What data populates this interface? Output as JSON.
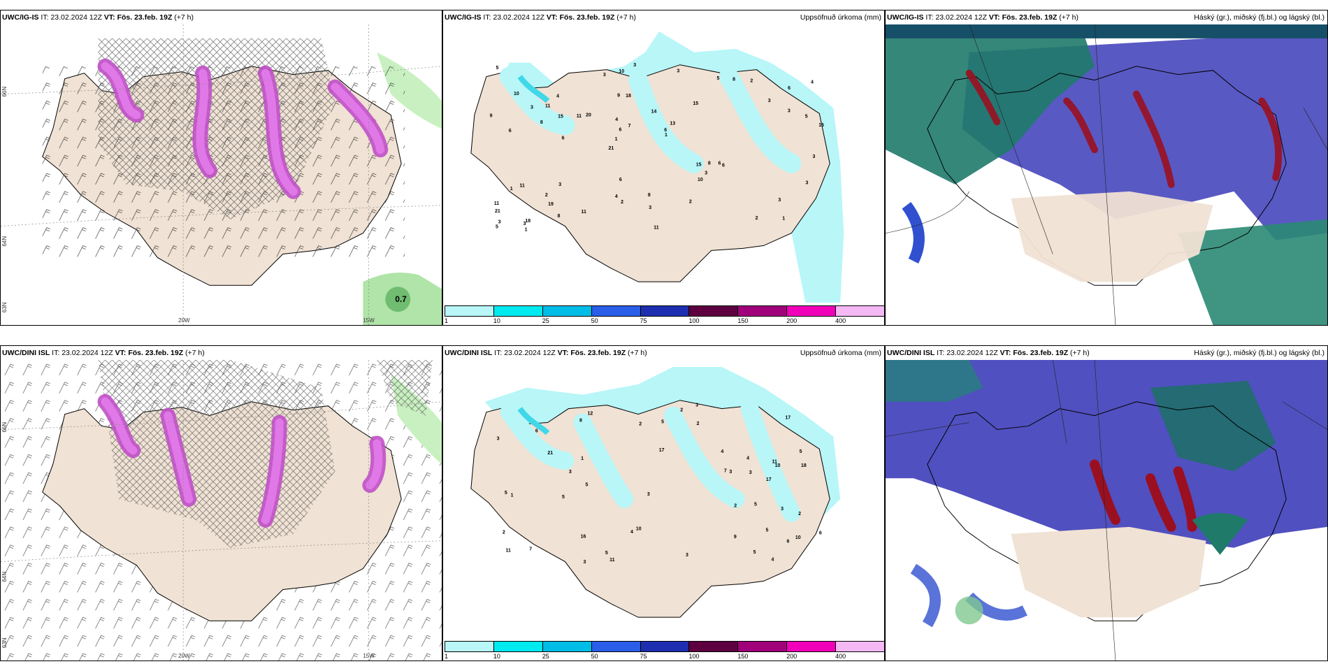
{
  "panels": {
    "p1": {
      "model": "UWC/IG-IS",
      "it_label": "IT:",
      "it": "23.02.2024 12Z",
      "vt_label": "VT:",
      "vt": "Fös. 23.feb. 19Z",
      "lead": "(+7 h)",
      "right": ""
    },
    "p2": {
      "model": "UWC/IG-IS",
      "it_label": "IT:",
      "it": "23.02.2024 12Z",
      "vt_label": "VT:",
      "vt": "Fös. 23.feb. 19Z",
      "lead": "(+7 h)",
      "right": "Uppsöfnuð úrkoma (mm)"
    },
    "p3": {
      "model": "UWC/IG-IS",
      "it_label": "IT:",
      "it": "23.02.2024 12Z",
      "vt_label": "VT:",
      "vt": "Fös. 23.feb. 19Z",
      "lead": "(+7 h)",
      "right": "Háský (gr.), miðský (fj.bl.) og lágský (bl.)"
    },
    "p4": {
      "model": "UWC/DINI ISL",
      "it_label": "IT:",
      "it": "23.02.2024 12Z",
      "vt_label": "VT:",
      "vt": "Fös. 23.feb. 19Z",
      "lead": "(+7 h)",
      "right": ""
    },
    "p5": {
      "model": "UWC/DINI ISL",
      "it_label": "IT:",
      "it": "23.02.2024 12Z",
      "vt_label": "VT:",
      "vt": "Fös. 23.feb. 19Z",
      "lead": "(+7 h)",
      "right": "Uppsöfnuð úrkoma (mm)"
    },
    "p6": {
      "model": "UWC/DINI ISL",
      "it_label": "IT:",
      "it": "23.02.2024 12Z",
      "vt_label": "VT:",
      "vt": "Fös. 23.feb. 19Z",
      "lead": "(+7 h)",
      "right": "Háský (gr.), miðský (fj.bl.) og lágský (bl.)"
    }
  },
  "grid_labels": {
    "lat66": "66N",
    "lat64": "64N",
    "lat63": "63N",
    "lon20": "20W",
    "lon15": "15W"
  },
  "wind_value": "0.7",
  "colorbar": {
    "ticks": [
      "1",
      "10",
      "25",
      "50",
      "75",
      "100",
      "150",
      "200",
      "400"
    ],
    "colors": [
      "#b8f6f8",
      "#00eaf0",
      "#00bde8",
      "#2a5ee8",
      "#1d2fb0",
      "#5e0040",
      "#a0007a",
      "#f000b8",
      "#f4b8f4"
    ]
  },
  "precip_top": [
    "1",
    "6",
    "6",
    "21",
    "15",
    "18",
    "9",
    "14",
    "11",
    "20",
    "21",
    "19",
    "18",
    "13",
    "6",
    "10",
    "10",
    "16",
    "15",
    "3",
    "1",
    "4",
    "6",
    "4",
    "5",
    "3",
    "2",
    "3",
    "6",
    "11",
    "11",
    "8",
    "10",
    "8",
    "5",
    "6",
    "3",
    "2",
    "1",
    "1",
    "3",
    "4",
    "3",
    "2",
    "2",
    "1",
    "5",
    "8",
    "2",
    "3",
    "6",
    "9",
    "11",
    "8",
    "3",
    "3",
    "3",
    "7",
    "3",
    "6",
    "11",
    "8",
    "15",
    "11",
    "5",
    "3",
    "3",
    "4",
    "3"
  ],
  "precip_bottom": [
    "5",
    "5",
    "10",
    "17",
    "11",
    "12",
    "11",
    "16",
    "17",
    "21",
    "18",
    "3",
    "17",
    "11",
    "2",
    "6",
    "6",
    "8",
    "10",
    "10",
    "5",
    "1",
    "3",
    "7",
    "5",
    "4",
    "2",
    "2",
    "4",
    "6",
    "5",
    "9",
    "3",
    "3",
    "3",
    "5",
    "3",
    "2",
    "4",
    "5",
    "5",
    "3",
    "5",
    "3",
    "2",
    "2",
    "7",
    "3",
    "1",
    "4"
  ],
  "colors": {
    "land": "#f0e2d4",
    "cyan_precip": "#b8f6f8",
    "magenta": "#d060d0",
    "high_cloud": "#5050c0",
    "mid_cloud": "#1f7a6a",
    "low_cloud": "#9a1020"
  }
}
